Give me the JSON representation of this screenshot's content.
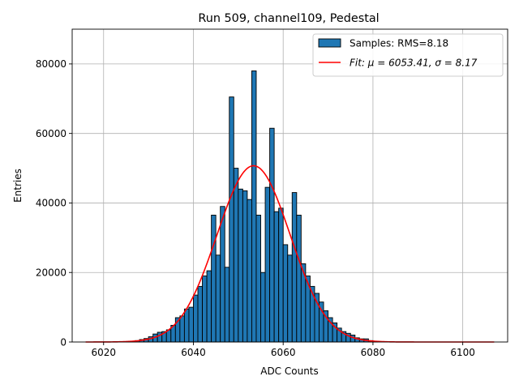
{
  "chart_data": {
    "type": "bar",
    "title": "Run 509, channel109, Pedestal",
    "xlabel": "ADC Counts",
    "ylabel": "Entries",
    "xlim": [
      6013,
      6110
    ],
    "ylim": [
      0,
      90000
    ],
    "grid": true,
    "legend_position": "top-right",
    "xticks": [
      6020,
      6040,
      6060,
      6080,
      6100
    ],
    "yticks": [
      0,
      20000,
      40000,
      60000,
      80000
    ],
    "bin_width": 1,
    "bins_x": [
      6025,
      6026,
      6027,
      6028,
      6029,
      6030,
      6031,
      6032,
      6033,
      6034,
      6035,
      6036,
      6037,
      6038,
      6039,
      6040,
      6041,
      6042,
      6043,
      6044,
      6045,
      6046,
      6047,
      6048,
      6049,
      6050,
      6051,
      6052,
      6053,
      6054,
      6055,
      6056,
      6057,
      6058,
      6059,
      6060,
      6061,
      6062,
      6063,
      6064,
      6065,
      6066,
      6067,
      6068,
      6069,
      6070,
      6071,
      6072,
      6073,
      6074,
      6075,
      6076,
      6077,
      6078,
      6079,
      6080
    ],
    "bins_y": [
      100,
      200,
      400,
      700,
      1000,
      1500,
      2300,
      2800,
      3000,
      3500,
      4800,
      7000,
      7500,
      9500,
      10000,
      13500,
      16000,
      19000,
      20500,
      36500,
      25000,
      39000,
      21500,
      70500,
      50000,
      44000,
      43500,
      41000,
      78000,
      36500,
      20000,
      44500,
      61500,
      37500,
      38500,
      28000,
      25000,
      43000,
      36500,
      22500,
      19000,
      16000,
      14000,
      11500,
      9000,
      7000,
      5500,
      4000,
      3000,
      2500,
      2000,
      1200,
      900,
      900,
      400,
      200
    ],
    "series": [
      {
        "name": "Samples: RMS=8.18",
        "kind": "histogram",
        "color": "#1f77b4"
      },
      {
        "name": "Fit: μ = 6053.41, σ = 8.17",
        "kind": "line",
        "color": "#ff0000",
        "mu": 6053.41,
        "sigma": 8.17,
        "amplitude": 50700,
        "x_range": [
          6016,
          6107
        ]
      }
    ],
    "legend": {
      "hist_label": "Samples: RMS=8.18",
      "fit_label": "Fit: μ = 6053.41, σ = 8.17"
    }
  }
}
